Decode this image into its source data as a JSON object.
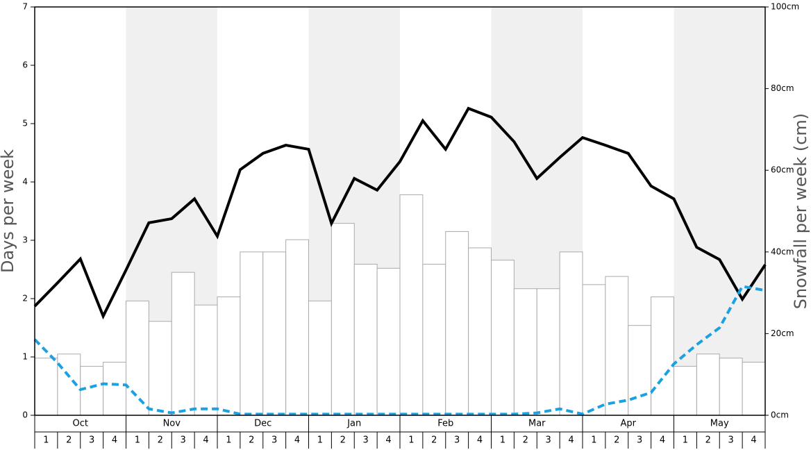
{
  "chart_data": {
    "type": "bar_line",
    "y_label": "Days per week",
    "y2_label": "Snowfall per week (cm)",
    "months": [
      "Oct",
      "Nov",
      "Dec",
      "Jan",
      "Feb",
      "Mar",
      "Apr",
      "May"
    ],
    "weeks": [
      1,
      2,
      3,
      4
    ],
    "ylim": [
      0,
      7
    ],
    "yticks": [
      0,
      1,
      2,
      3,
      4,
      5,
      6,
      7
    ],
    "y2lim": [
      0,
      100
    ],
    "y2ticks": [
      {
        "value": 0,
        "label": "0cm"
      },
      {
        "value": 20,
        "label": "20cm"
      },
      {
        "value": 40,
        "label": "40cm"
      },
      {
        "value": 60,
        "label": "60cm"
      },
      {
        "value": 80,
        "label": "80cm"
      },
      {
        "value": 100,
        "label": "100cm"
      }
    ],
    "xlim": [
      0,
      32
    ],
    "shade_color": "#f0f0f0",
    "bars": {
      "axis": "y2",
      "color": "#ffffff",
      "edge_color": "#aaaaaa",
      "values": [
        14,
        15,
        12,
        13,
        28,
        23,
        35,
        27,
        29,
        40,
        40,
        43,
        28,
        47,
        37,
        36,
        54,
        37,
        45,
        41,
        38,
        31,
        31,
        40,
        32,
        34,
        22,
        29,
        12,
        15,
        14,
        13
      ]
    },
    "series": [
      {
        "color": "#000000",
        "dashed": false,
        "x": [
          0,
          1,
          2,
          3,
          4,
          5,
          6,
          7,
          8,
          9,
          10,
          11,
          12,
          13,
          14,
          15,
          16,
          17,
          18,
          19,
          20,
          21,
          22,
          23,
          24,
          25,
          26,
          27,
          28,
          29,
          30,
          31,
          32
        ],
        "values": [
          1.87,
          2.27,
          2.68,
          1.7,
          2.49,
          3.3,
          3.37,
          3.71,
          3.07,
          4.21,
          4.49,
          4.63,
          4.56,
          3.29,
          4.06,
          3.86,
          4.35,
          5.05,
          4.56,
          5.26,
          5.11,
          4.69,
          4.06,
          4.42,
          4.76,
          4.63,
          4.49,
          3.93,
          3.71,
          2.88,
          2.67,
          1.99,
          2.58
        ]
      },
      {
        "color": "#1ba1e2",
        "dashed": true,
        "x": [
          0,
          1,
          2,
          3,
          4,
          5,
          6,
          7,
          8,
          9,
          10,
          11,
          12,
          13,
          14,
          15,
          16,
          17,
          18,
          19,
          20,
          21,
          22,
          23,
          24,
          25,
          26,
          27,
          28,
          29,
          30,
          31,
          32
        ],
        "values": [
          1.3,
          0.9,
          0.44,
          0.54,
          0.52,
          0.11,
          0.04,
          0.11,
          0.11,
          0.02,
          0.02,
          0.02,
          0.02,
          0.02,
          0.02,
          0.02,
          0.02,
          0.02,
          0.02,
          0.02,
          0.02,
          0.02,
          0.04,
          0.11,
          0.02,
          0.19,
          0.26,
          0.39,
          0.88,
          1.21,
          1.5,
          2.21,
          2.14
        ]
      }
    ]
  }
}
